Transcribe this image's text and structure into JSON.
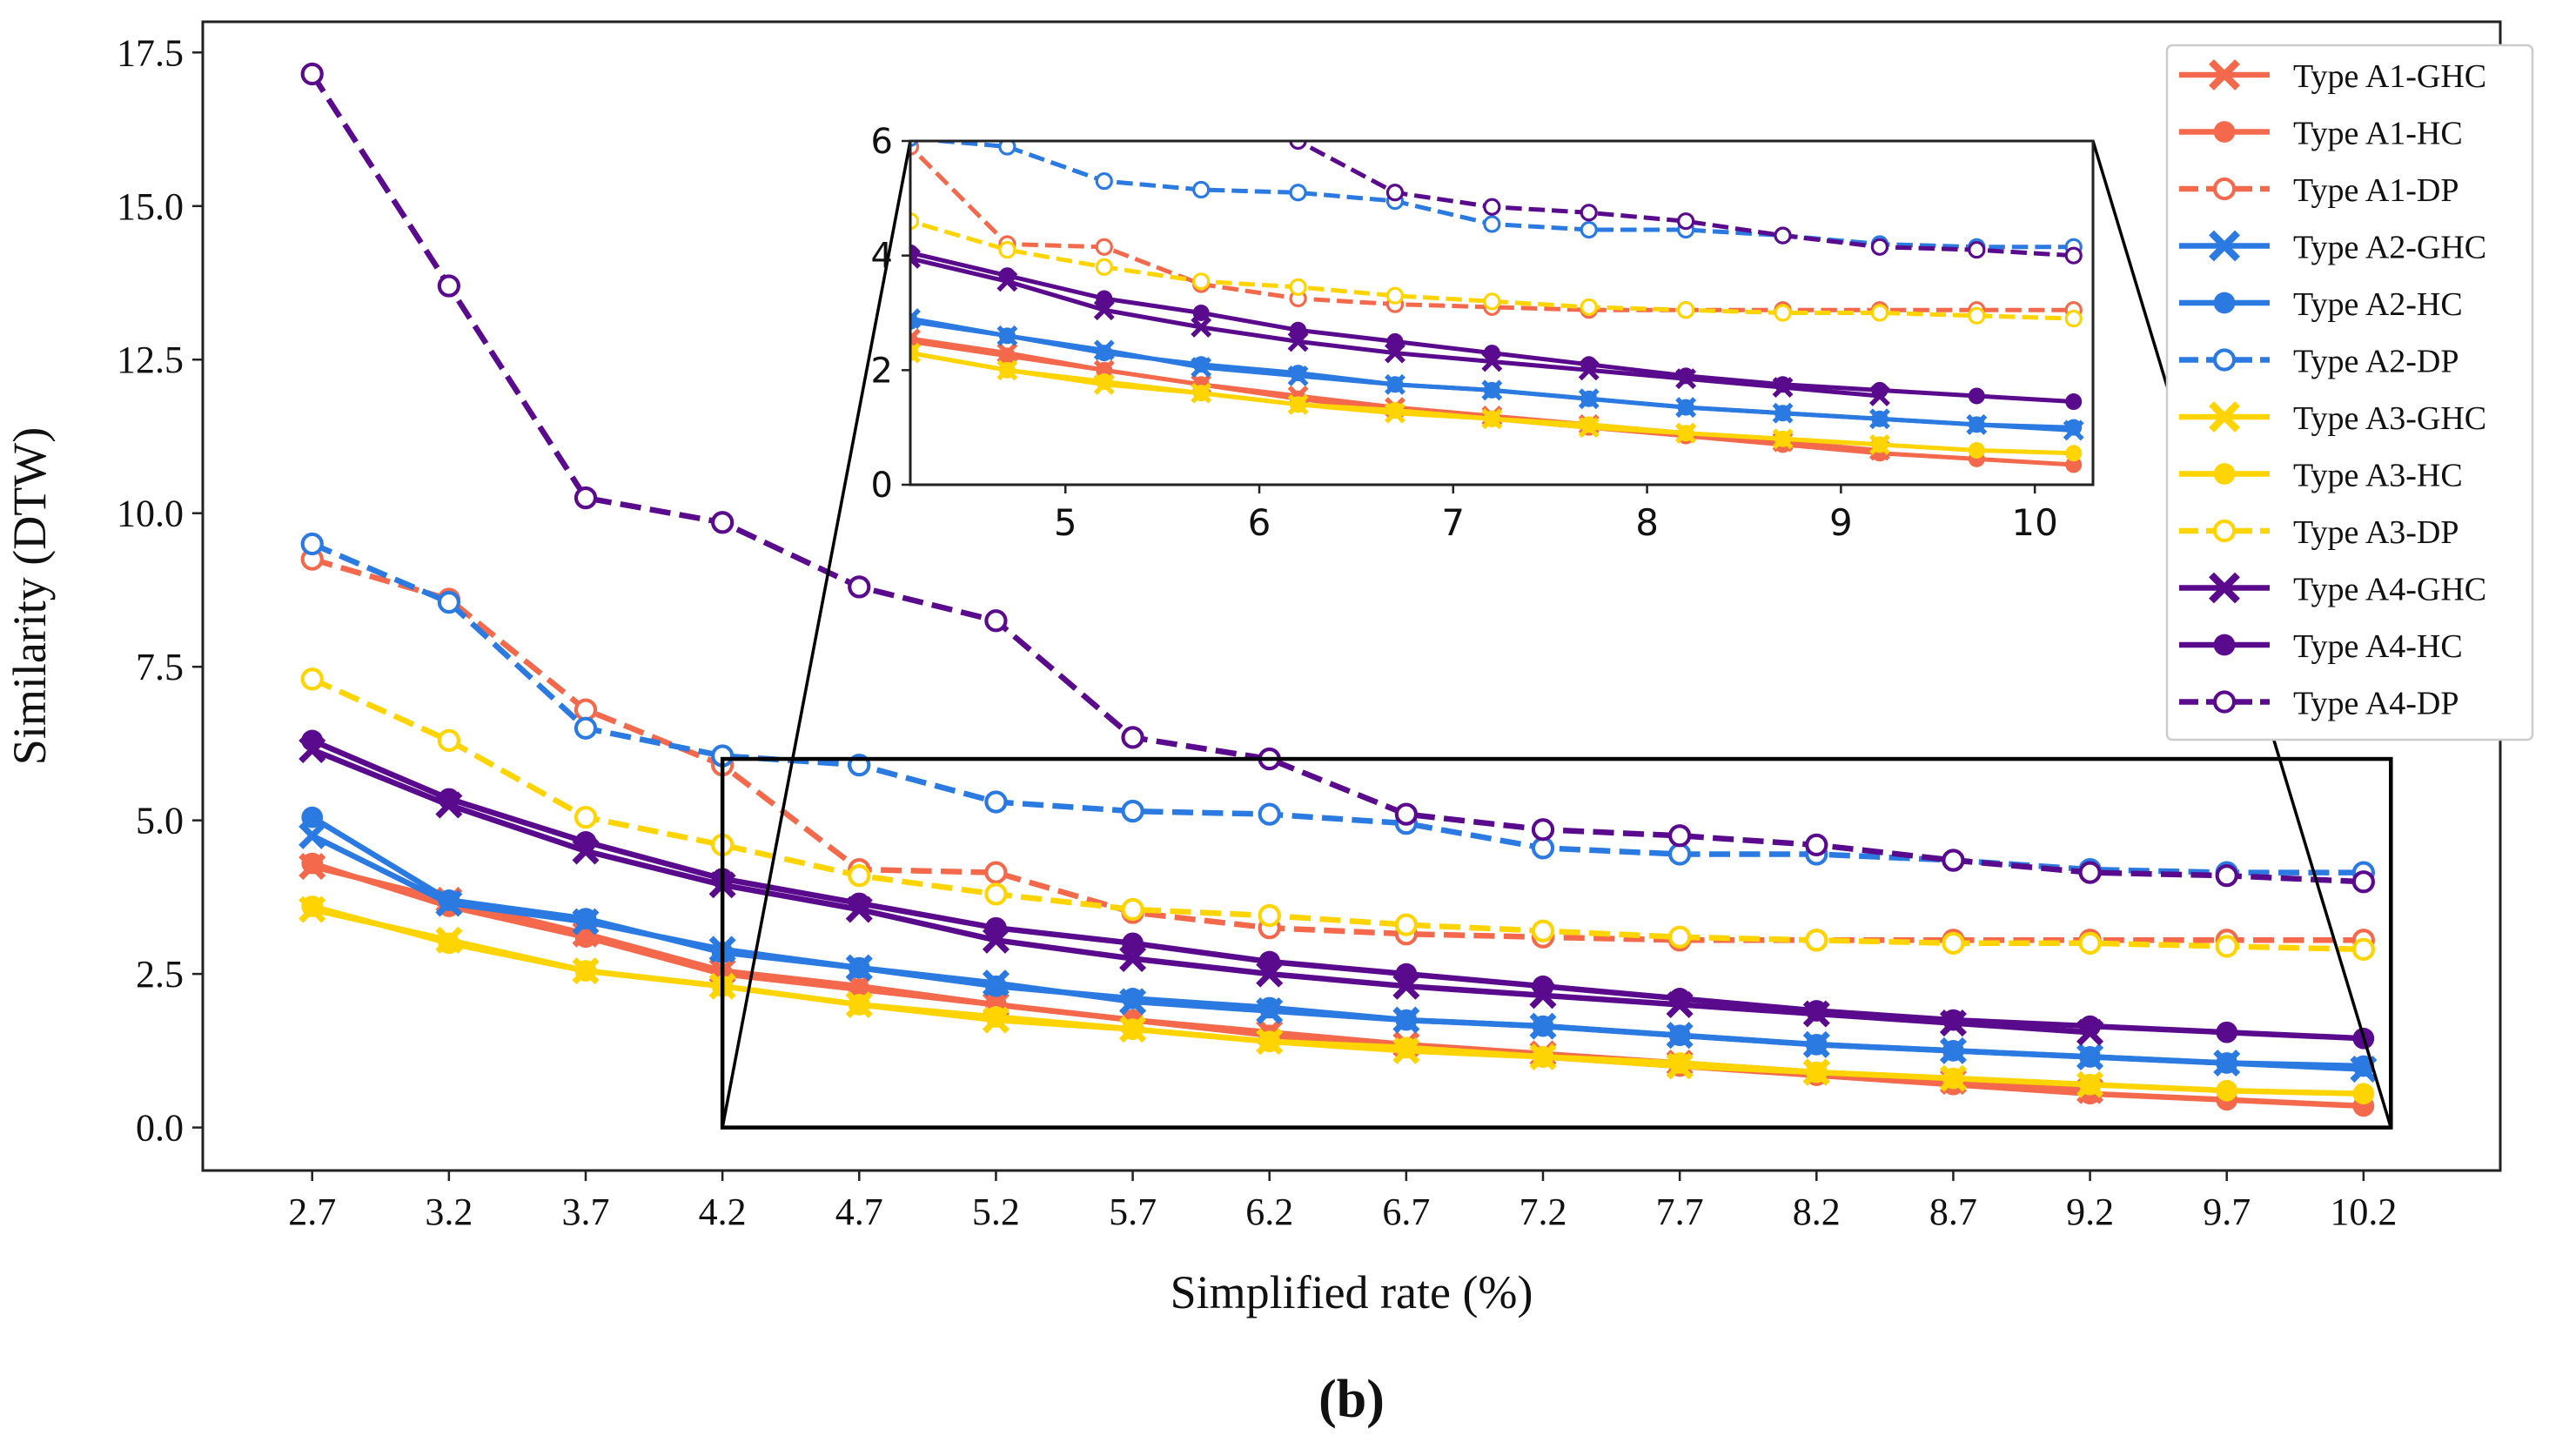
{
  "chart_data": {
    "type": "line",
    "xlabel": "Simplified rate (%)",
    "ylabel": "Similarity (DTW)",
    "panel_label": "(b)",
    "x": [
      2.7,
      3.2,
      3.7,
      4.2,
      4.7,
      5.2,
      5.7,
      6.2,
      6.7,
      7.2,
      7.7,
      8.2,
      8.7,
      9.2,
      9.7,
      10.2
    ],
    "x_tick_labels": [
      "2.7",
      "3.2",
      "3.7",
      "4.2",
      "4.7",
      "5.2",
      "5.7",
      "6.2",
      "6.7",
      "7.2",
      "7.7",
      "8.2",
      "8.7",
      "9.2",
      "9.7",
      "10.2"
    ],
    "ylim": [
      -0.7,
      18.0
    ],
    "y_ticks": [
      0.0,
      2.5,
      5.0,
      7.5,
      10.0,
      12.5,
      15.0,
      17.5
    ],
    "y_tick_labels": [
      "0.0",
      "2.5",
      "5.0",
      "7.5",
      "10.0",
      "12.5",
      "15.0",
      "17.5"
    ],
    "grid": false,
    "legend_position": "top-right",
    "colors": {
      "A1": "#f4694c",
      "A2": "#2a7ae2",
      "A3": "#ffd400",
      "A4": "#5a0a8c"
    },
    "series": [
      {
        "name": "Type A1-GHC",
        "group": "A1",
        "style": "solid",
        "marker": "x",
        "values": [
          4.25,
          3.7,
          3.15,
          2.55,
          2.3,
          2.0,
          1.75,
          1.55,
          1.35,
          1.2,
          1.05,
          0.9,
          0.75,
          0.6,
          null,
          null
        ]
      },
      {
        "name": "Type A1-HC",
        "group": "A1",
        "style": "solid",
        "marker": "o",
        "values": [
          4.3,
          3.6,
          3.1,
          2.5,
          2.25,
          2.0,
          1.75,
          1.5,
          1.3,
          1.15,
          1.0,
          0.85,
          0.7,
          0.55,
          0.45,
          0.35
        ]
      },
      {
        "name": "Type A1-DP",
        "group": "A1",
        "style": "dashed",
        "marker": "open",
        "values": [
          9.25,
          8.6,
          6.8,
          5.9,
          4.2,
          4.15,
          3.5,
          3.25,
          3.15,
          3.1,
          3.05,
          3.05,
          3.05,
          3.05,
          3.05,
          3.05
        ]
      },
      {
        "name": "Type A2-GHC",
        "group": "A2",
        "style": "solid",
        "marker": "x",
        "values": [
          4.75,
          3.65,
          3.35,
          2.9,
          2.6,
          2.35,
          2.05,
          1.9,
          1.75,
          1.65,
          1.5,
          1.35,
          1.25,
          1.15,
          1.05,
          0.95
        ]
      },
      {
        "name": "Type A2-HC",
        "group": "A2",
        "style": "solid",
        "marker": "o",
        "values": [
          5.05,
          3.7,
          3.4,
          2.85,
          2.6,
          2.3,
          2.1,
          1.95,
          1.75,
          1.65,
          1.5,
          1.35,
          1.25,
          1.15,
          1.05,
          1.0
        ]
      },
      {
        "name": "Type A2-DP",
        "group": "A2",
        "style": "dashed",
        "marker": "open",
        "values": [
          9.5,
          8.55,
          6.5,
          6.05,
          5.9,
          5.3,
          5.15,
          5.1,
          4.95,
          4.55,
          4.45,
          4.45,
          4.35,
          4.2,
          4.15,
          4.15
        ]
      },
      {
        "name": "Type A3-GHC",
        "group": "A3",
        "style": "solid",
        "marker": "x",
        "values": [
          3.55,
          3.05,
          2.55,
          2.3,
          2.0,
          1.75,
          1.6,
          1.4,
          1.25,
          1.15,
          1.0,
          0.9,
          0.8,
          0.7,
          null,
          null
        ]
      },
      {
        "name": "Type A3-HC",
        "group": "A3",
        "style": "solid",
        "marker": "o",
        "values": [
          3.6,
          3.0,
          2.55,
          2.3,
          2.0,
          1.8,
          1.6,
          1.4,
          1.3,
          1.15,
          1.05,
          0.9,
          0.8,
          0.7,
          0.6,
          0.55
        ]
      },
      {
        "name": "Type A3-DP",
        "group": "A3",
        "style": "dashed",
        "marker": "open",
        "values": [
          7.3,
          6.3,
          5.05,
          4.6,
          4.1,
          3.8,
          3.55,
          3.45,
          3.3,
          3.2,
          3.1,
          3.05,
          3.0,
          3.0,
          2.95,
          2.9
        ]
      },
      {
        "name": "Type A4-GHC",
        "group": "A4",
        "style": "solid",
        "marker": "x",
        "values": [
          6.15,
          5.25,
          4.5,
          3.95,
          3.55,
          3.05,
          2.75,
          2.5,
          2.3,
          2.15,
          2.0,
          1.85,
          1.7,
          1.55,
          null,
          null
        ]
      },
      {
        "name": "Type A4-HC",
        "group": "A4",
        "style": "solid",
        "marker": "o",
        "values": [
          6.3,
          5.35,
          4.65,
          4.05,
          3.65,
          3.25,
          3.0,
          2.7,
          2.5,
          2.3,
          2.1,
          1.9,
          1.75,
          1.65,
          1.55,
          1.45
        ]
      },
      {
        "name": "Type A4-DP",
        "group": "A4",
        "style": "dashed",
        "marker": "open",
        "values": [
          17.15,
          13.7,
          10.25,
          9.85,
          8.8,
          8.25,
          6.35,
          6.0,
          5.1,
          4.85,
          4.75,
          4.6,
          4.35,
          4.15,
          4.1,
          4.0
        ]
      }
    ],
    "inset": {
      "xlim": [
        4.2,
        10.3
      ],
      "ylim": [
        0,
        6
      ],
      "x_ticks": [
        5,
        6,
        7,
        8,
        9,
        10
      ],
      "x_tick_labels": [
        "5",
        "6",
        "7",
        "8",
        "9",
        "10"
      ],
      "y_ticks": [
        0,
        2,
        4,
        6
      ],
      "y_tick_labels": [
        "0",
        "2",
        "4",
        "6"
      ],
      "zoom_box": {
        "x": [
          4.2,
          10.3
        ],
        "y": [
          0,
          6
        ]
      }
    }
  }
}
